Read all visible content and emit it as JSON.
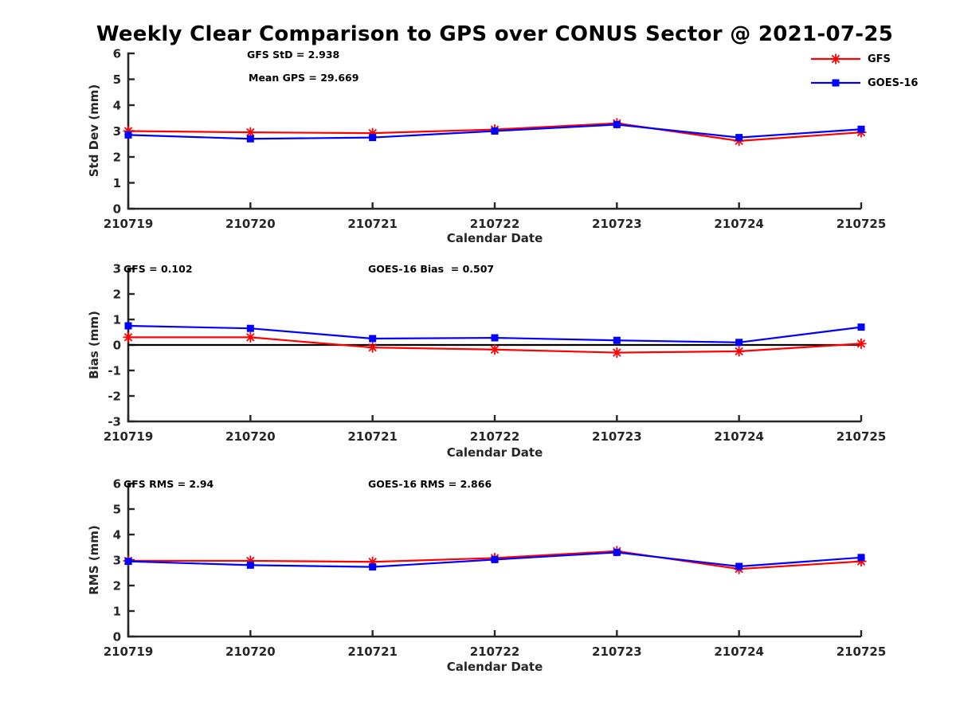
{
  "figure": {
    "title": "Weekly Clear Comparison to GPS over CONUS Sector @ 2021-07-25"
  },
  "colors": {
    "gfs": "#ff0000",
    "goes16": "#0000ff",
    "axis": "#262626",
    "text": "#000000",
    "zero_line": "#000000",
    "background": "#ffffff"
  },
  "legend": {
    "position": "top-right",
    "items": [
      {
        "label": "GFS",
        "color_key": "gfs",
        "marker": "asterisk"
      },
      {
        "label": "GOES-16",
        "color_key": "goes16",
        "marker": "square"
      }
    ]
  },
  "chart_data": [
    {
      "type": "line",
      "ylabel": "Std Dev (mm)",
      "xlabel": "Calendar Date",
      "ylim": [
        0,
        6
      ],
      "yticks": [
        0,
        1,
        2,
        3,
        4,
        5,
        6
      ],
      "grid": false,
      "zero_line": false,
      "legend_position": "top-right-outside",
      "categories": [
        "210719",
        "210720",
        "210721",
        "210722",
        "210723",
        "210724",
        "210725"
      ],
      "series": [
        {
          "name": "GFS",
          "color_key": "gfs",
          "marker": "asterisk",
          "values": [
            3.0,
            2.95,
            2.92,
            3.06,
            3.3,
            2.62,
            2.95
          ]
        },
        {
          "name": "GOES-16",
          "color_key": "goes16",
          "marker": "square",
          "values": [
            2.85,
            2.7,
            2.75,
            3.0,
            3.25,
            2.75,
            3.07
          ]
        }
      ],
      "annotations": [
        {
          "text": "GFS StD = 2.938"
        },
        {
          "text": "Mean GPS = 29.669"
        }
      ]
    },
    {
      "type": "line",
      "ylabel": "Bias (mm)",
      "xlabel": "Calendar Date",
      "ylim": [
        -3,
        3
      ],
      "yticks": [
        -3,
        -2,
        -1,
        0,
        1,
        2,
        3
      ],
      "grid": false,
      "zero_line": true,
      "categories": [
        "210719",
        "210720",
        "210721",
        "210722",
        "210723",
        "210724",
        "210725"
      ],
      "series": [
        {
          "name": "GFS",
          "color_key": "gfs",
          "marker": "asterisk",
          "values": [
            0.3,
            0.3,
            -0.1,
            -0.18,
            -0.3,
            -0.25,
            0.05
          ]
        },
        {
          "name": "GOES-16",
          "color_key": "goes16",
          "marker": "square",
          "values": [
            0.75,
            0.65,
            0.25,
            0.28,
            0.18,
            0.1,
            0.7
          ]
        }
      ],
      "annotations": [
        {
          "text": "GFS = 0.102"
        },
        {
          "text": "GOES-16 Bias  = 0.507"
        }
      ]
    },
    {
      "type": "line",
      "ylabel": "RMS (mm)",
      "xlabel": "Calendar Date",
      "ylim": [
        0,
        6
      ],
      "yticks": [
        0,
        1,
        2,
        3,
        4,
        5,
        6
      ],
      "grid": false,
      "zero_line": false,
      "categories": [
        "210719",
        "210720",
        "210721",
        "210722",
        "210723",
        "210724",
        "210725"
      ],
      "series": [
        {
          "name": "GFS",
          "color_key": "gfs",
          "marker": "asterisk",
          "values": [
            2.97,
            2.97,
            2.93,
            3.08,
            3.35,
            2.65,
            2.95
          ]
        },
        {
          "name": "GOES-16",
          "color_key": "goes16",
          "marker": "square",
          "values": [
            2.95,
            2.8,
            2.73,
            3.02,
            3.3,
            2.75,
            3.1
          ]
        }
      ],
      "annotations": [
        {
          "text": "GFS RMS = 2.94"
        },
        {
          "text": "GOES-16 RMS = 2.866"
        }
      ]
    }
  ]
}
